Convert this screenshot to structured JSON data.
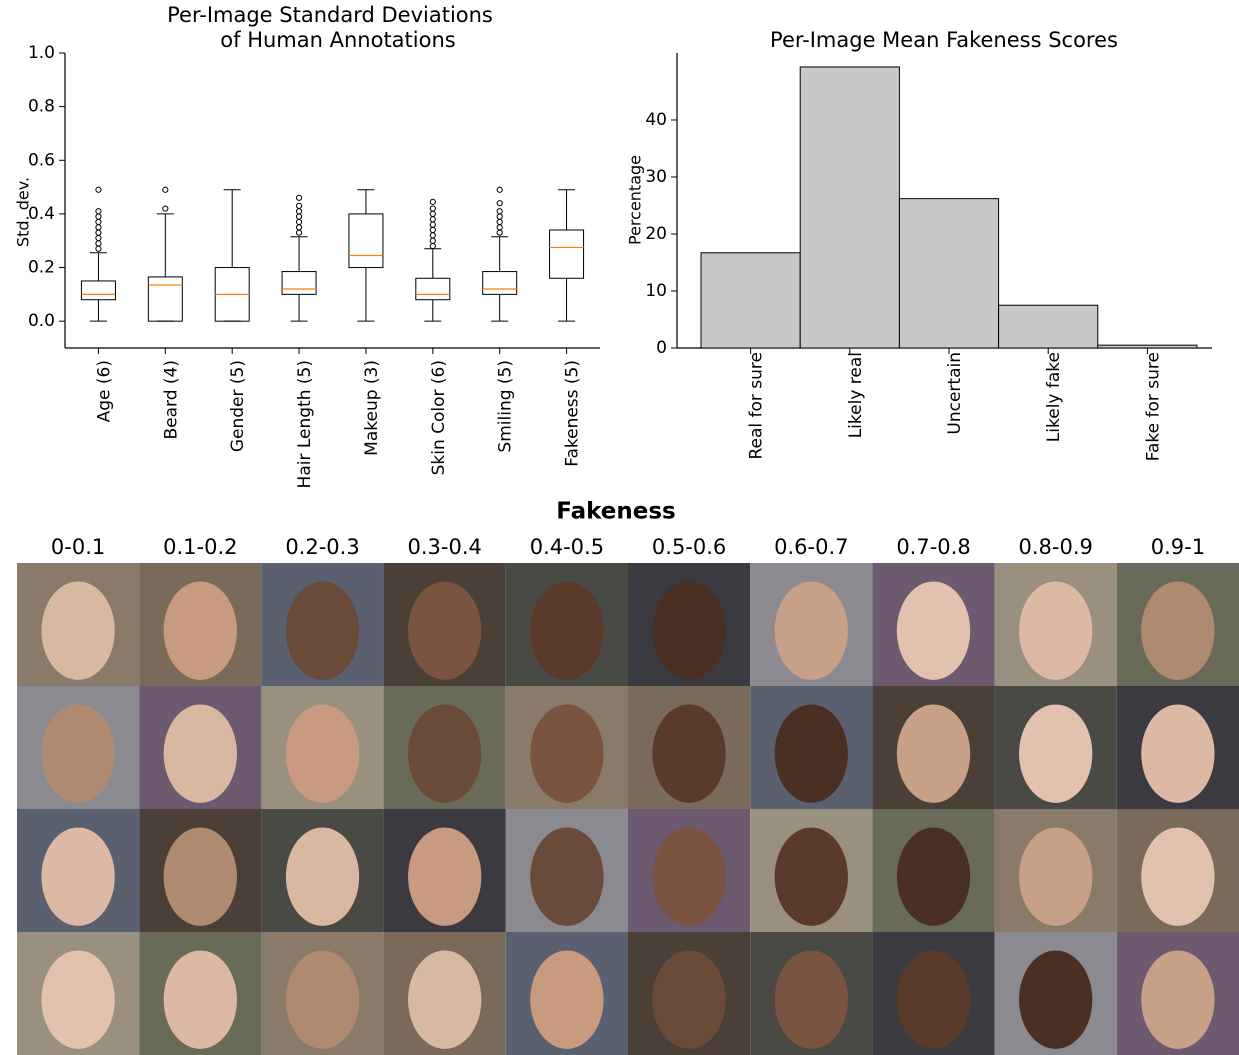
{
  "chart_data": [
    {
      "type": "box",
      "title": [
        "Per-Image Standard Deviations",
        "of Human Annotations"
      ],
      "ylabel": "Std. dev.",
      "categories": [
        "Age (6)",
        "Beard (4)",
        "Gender (5)",
        "Hair Length (5)",
        "Makeup (3)",
        "Skin Color (6)",
        "Smiling (5)",
        "Fakeness (5)"
      ],
      "boxes": [
        {
          "min": 0,
          "q1": 0.08,
          "median": 0.1,
          "q3": 0.15,
          "max": 0.255,
          "outliers": [
            0.27,
            0.29,
            0.31,
            0.33,
            0.35,
            0.37,
            0.39,
            0.41,
            0.49
          ]
        },
        {
          "min": 0,
          "q1": 0,
          "median": 0.135,
          "q3": 0.165,
          "max": 0.4,
          "outliers": [
            0.42,
            0.49
          ]
        },
        {
          "min": 0,
          "q1": 0,
          "median": 0.1,
          "q3": 0.2,
          "max": 0.49,
          "outliers": []
        },
        {
          "min": 0,
          "q1": 0.1,
          "median": 0.12,
          "q3": 0.185,
          "max": 0.315,
          "outliers": [
            0.33,
            0.35,
            0.37,
            0.39,
            0.41,
            0.43,
            0.46
          ]
        },
        {
          "min": 0,
          "q1": 0.2,
          "median": 0.245,
          "q3": 0.4,
          "max": 0.49,
          "outliers": []
        },
        {
          "min": 0,
          "q1": 0.08,
          "median": 0.1,
          "q3": 0.16,
          "max": 0.27,
          "outliers": [
            0.28,
            0.3,
            0.32,
            0.34,
            0.36,
            0.38,
            0.4,
            0.42,
            0.445
          ]
        },
        {
          "min": 0,
          "q1": 0.1,
          "median": 0.12,
          "q3": 0.185,
          "max": 0.315,
          "outliers": [
            0.33,
            0.35,
            0.37,
            0.39,
            0.41,
            0.44,
            0.49
          ]
        },
        {
          "min": 0,
          "q1": 0.16,
          "median": 0.275,
          "q3": 0.34,
          "max": 0.49,
          "outliers": []
        }
      ],
      "median_color": "#ff7f0e",
      "ylim": [
        -0.1,
        1.0
      ],
      "yticks": [
        {
          "value": 0,
          "label": "0.0"
        },
        {
          "value": 0.2,
          "label": "0.2"
        },
        {
          "value": 0.4,
          "label": "0.4"
        },
        {
          "value": 0.6,
          "label": "0.6"
        },
        {
          "value": 0.8,
          "label": "0.8"
        },
        {
          "value": 1.0,
          "label": "1.0"
        }
      ]
    },
    {
      "type": "bar",
      "title": "Per-Image Mean Fakeness Scores",
      "ylabel": "Percentage",
      "categories": [
        "Real for sure",
        "Likely real",
        "Uncertain",
        "Likely fake",
        "Fake for sure"
      ],
      "values": [
        16.7,
        49.3,
        26.2,
        7.5,
        0.5
      ],
      "color": "#c8c8c8",
      "ylim": [
        0,
        51.75
      ],
      "yticks": [
        0,
        10,
        20,
        30,
        40
      ]
    }
  ],
  "figure": {
    "title": "Fakeness",
    "columns": [
      "0-0.1",
      "0.1-0.2",
      "0.2-0.3",
      "0.3-0.4",
      "0.4-0.5",
      "0.5-0.6",
      "0.6-0.7",
      "0.7-0.8",
      "0.8-0.9",
      "0.9-1"
    ]
  }
}
